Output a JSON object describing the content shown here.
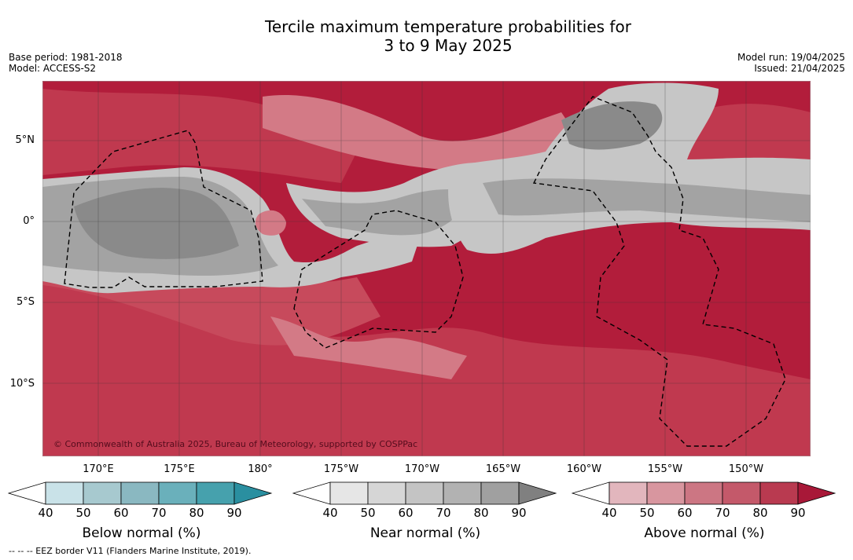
{
  "title_line1": "Tercile maximum temperature probabilities for",
  "title_line2": "3 to 9 May 2025",
  "base_period": "Base period: 1981-2018",
  "model": "Model: ACCESS-S2",
  "model_run": "Model run: 19/04/2025",
  "issued": "Issued: 21/04/2025",
  "copyright": "© Commonwealth of Australia 2025, Bureau of Meteorology, supported by COSPPac",
  "eez_legend": "--  --  -- EEZ border V11 (Flanders Marine Institute, 2019).",
  "lat_labels": [
    "5°N",
    "0°",
    "5°S",
    "10°S"
  ],
  "lon_labels": [
    "170°E",
    "175°E",
    "180°",
    "175°W",
    "170°W",
    "165°W",
    "160°W",
    "155°W",
    "150°W"
  ],
  "colorbars": [
    {
      "title": "Below normal (%)",
      "ticks": [
        "40",
        "50",
        "60",
        "70",
        "80",
        "90"
      ],
      "colors": [
        "#ffffff",
        "#c9e2e8",
        "#a7c9cf",
        "#8ab8c1",
        "#6ab0bb",
        "#46a1ad",
        "#2a8fa0"
      ]
    },
    {
      "title": "Near normal (%)",
      "ticks": [
        "40",
        "50",
        "60",
        "70",
        "80",
        "90"
      ],
      "colors": [
        "#ffffff",
        "#e6e6e6",
        "#d6d6d6",
        "#c4c4c4",
        "#b2b2b2",
        "#a0a0a0",
        "#808080"
      ]
    },
    {
      "title": "Above normal (%)",
      "ticks": [
        "40",
        "50",
        "60",
        "70",
        "80",
        "90"
      ],
      "colors": [
        "#ffffff",
        "#e2b6bd",
        "#d8969f",
        "#cc7683",
        "#c4596a",
        "#b93a50",
        "#a81838"
      ]
    }
  ],
  "colors": {
    "above_strong": "#b21d3b",
    "above_mid": "#c0394f",
    "above_light": "#d37a86",
    "above_pale": "#e0a3ad",
    "near_dark": "#8a8a8a",
    "near_mid": "#a3a3a3",
    "near_light": "#c6c6c6",
    "near_pale": "#dcdcdc"
  }
}
